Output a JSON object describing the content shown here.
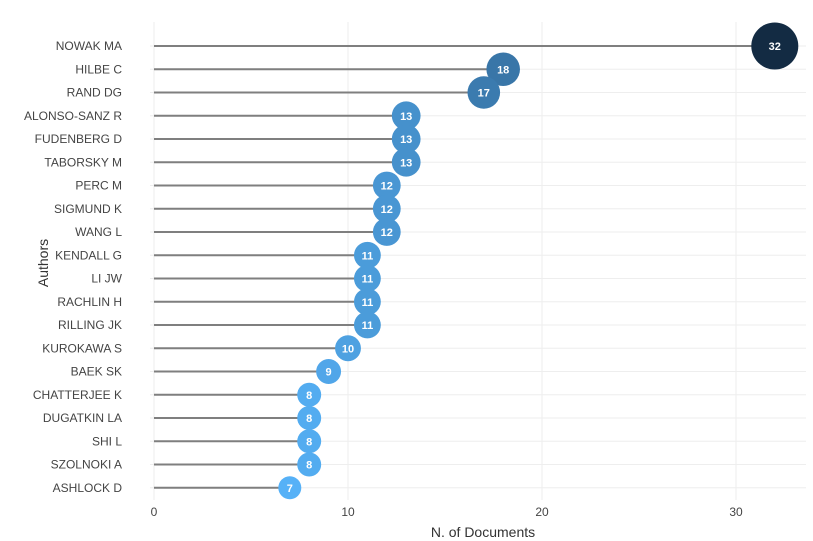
{
  "chart_data": {
    "type": "scatter",
    "style": "lollipop",
    "orientation": "horizontal",
    "title": "",
    "xlabel": "N. of Documents",
    "ylabel": "Authors",
    "xlim": [
      0,
      33.5
    ],
    "xticks": [
      0,
      10,
      20,
      30
    ],
    "grid": true,
    "legend": "none",
    "categories": [
      "NOWAK MA",
      "HILBE C",
      "RAND DG",
      "ALONSO-SANZ R",
      "FUDENBERG D",
      "TABORSKY M",
      "PERC M",
      "SIGMUND K",
      "WANG L",
      "KENDALL G",
      "LI JW",
      "RACHLIN H",
      "RILLING JK",
      "KUROKAWA S",
      "BAEK SK",
      "CHATTERJEE K",
      "DUGATKIN LA",
      "SHI L",
      "SZOLNOKI A",
      "ASHLOCK D"
    ],
    "values": [
      32,
      18,
      17,
      13,
      13,
      13,
      12,
      12,
      12,
      11,
      11,
      11,
      11,
      10,
      9,
      8,
      8,
      8,
      8,
      7
    ],
    "colors": {
      "stem": "#7f7f7f",
      "grid": "#eeeeee",
      "low": "#56b1f7",
      "high": "#132b43"
    }
  }
}
